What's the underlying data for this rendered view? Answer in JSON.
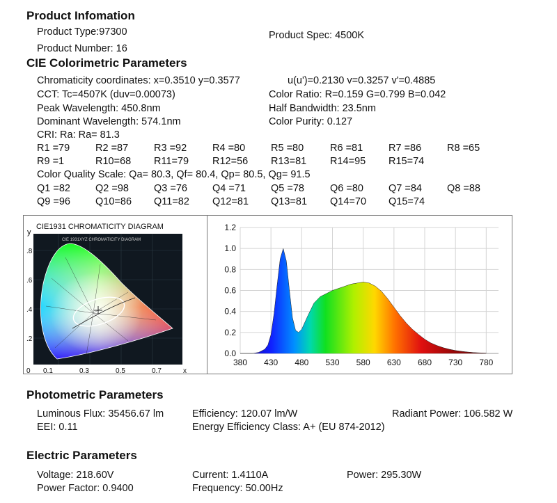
{
  "product": {
    "heading": "Product Infomation",
    "type": "Product Type:97300",
    "spec": "Product Spec: 4500K",
    "number": "Product Number: 16"
  },
  "cie": {
    "heading": "CIE Colorimetric Parameters",
    "chromaticity": "Chromaticity coordinates: x=0.3510 y=0.3577",
    "uv": "u(u')=0.2130 v=0.3257 v'=0.4885",
    "cct": "CCT: Tc=4507K (duv=0.00073)",
    "color_ratio": "Color Ratio: R=0.159  G=0.799  B=0.042",
    "peak": "Peak Wavelength: 450.8nm",
    "half_bw": "Half Bandwidth: 23.5nm",
    "dominant": "Dominant Wavelength: 574.1nm",
    "purity": "Color Purity: 0.127",
    "cri": "CRI: Ra: Ra= 81.3",
    "r_row1": [
      "R1 =79",
      "R2 =87",
      "R3 =92",
      "R4 =80",
      "R5 =80",
      "R6 =81",
      "R7 =86",
      "R8 =65"
    ],
    "r_row2": [
      "R9 =1",
      "R10=68",
      "R11=79",
      "R12=56",
      "R13=81",
      "R14=95",
      "R15=74"
    ],
    "cqs": "Color Quality Scale: Qa= 80.3, Qf= 80.4, Qp= 80.5, Qg= 91.5",
    "q_row1": [
      "Q1 =82",
      "Q2 =98",
      "Q3 =76",
      "Q4 =71",
      "Q5 =78",
      "Q6 =80",
      "Q7 =84",
      "Q8 =88"
    ],
    "q_row2": [
      "Q9 =96",
      "Q10=86",
      "Q11=82",
      "Q12=81",
      "Q13=81",
      "Q14=70",
      "Q15=74"
    ]
  },
  "diagram": {
    "title": "CIE1931 CHROMATICITY DIAGRAM",
    "inner_title": "CIE 1931XYZ CHROMATICITY DIAGRAM",
    "y_label": "y",
    "x_label": "x",
    "y_ticks": [
      ".8",
      ".6",
      ".4",
      ".2"
    ],
    "x_ticks": [
      "0",
      "0.1",
      "0.3",
      "0.5",
      "0.7"
    ],
    "point": {
      "x": 0.351,
      "y": 0.3577
    }
  },
  "chart_data": {
    "type": "area",
    "title": "",
    "xlabel": "",
    "ylabel": "",
    "xlim": [
      380,
      800
    ],
    "ylim": [
      0,
      1.2
    ],
    "x_ticks": [
      380,
      430,
      480,
      530,
      580,
      630,
      680,
      730,
      780
    ],
    "y_ticks": [
      "0.0",
      "0.2",
      "0.4",
      "0.6",
      "0.8",
      "1.0",
      "1.2"
    ],
    "grid": true,
    "series": [
      {
        "x": [
          380,
          400,
          410,
          420,
          425,
          430,
          435,
          440,
          445,
          450,
          455,
          460,
          465,
          470,
          475,
          480,
          490,
          500,
          510,
          520,
          530,
          540,
          550,
          560,
          570,
          580,
          590,
          600,
          610,
          620,
          630,
          640,
          650,
          660,
          670,
          680,
          690,
          700,
          710,
          720,
          730,
          740,
          750,
          760,
          770,
          780
        ],
        "values": [
          0.0,
          0.0,
          0.01,
          0.04,
          0.08,
          0.18,
          0.38,
          0.65,
          0.9,
          1.0,
          0.88,
          0.6,
          0.34,
          0.22,
          0.2,
          0.23,
          0.36,
          0.48,
          0.54,
          0.57,
          0.6,
          0.62,
          0.64,
          0.66,
          0.67,
          0.68,
          0.67,
          0.64,
          0.59,
          0.52,
          0.44,
          0.36,
          0.29,
          0.23,
          0.18,
          0.135,
          0.1,
          0.075,
          0.055,
          0.04,
          0.028,
          0.02,
          0.013,
          0.008,
          0.005,
          0.003
        ]
      }
    ]
  },
  "photometric": {
    "heading": "Photometric Parameters",
    "flux": "Luminous Flux: 35456.67 lm",
    "efficiency": "Efficiency: 120.07 lm/W",
    "radiant": "Radiant Power: 106.582 W",
    "eei": "EEI:  0.11",
    "class": "Energy Efficiency Class: A+ (EU 874-2012)"
  },
  "electric": {
    "heading": "Electric Parameters",
    "voltage": "Voltage: 218.60V",
    "current": "Current: 1.4110A",
    "power": "Power: 295.30W",
    "pf": "Power Factor: 0.9400",
    "frequency": "Frequency: 50.00Hz"
  }
}
